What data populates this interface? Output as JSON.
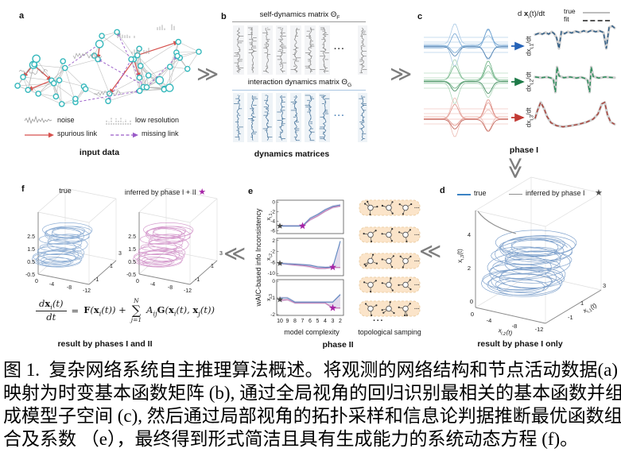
{
  "colors": {
    "node": "#35b8bc",
    "edge": "#b8b8b8",
    "spurious": "#d6514d",
    "missing": "#9a5bc8",
    "gray_matrix": "#8a8a8a",
    "blue_matrix": "#49759c",
    "underline1": "#9a9a9a",
    "underline2": "#aac7e2",
    "blue_line": "#5d88c0",
    "pink_line": "#c470ae",
    "band": "#b9a7cf",
    "attractor_blue": "#7fa3cf",
    "attractor_blue_dark": "#6b93c4",
    "attractor_pink": "#cf8cc5",
    "magenta_star": "#a623a6",
    "gray_star": "#4a4a4a",
    "true_blue": "#3b82c4",
    "inferred_gray": "#8f8f8f",
    "peach": "#fbe4c9",
    "peach_border": "#eccfa6",
    "chevron": "#7d7d7d",
    "fit_true": "#cfcfcf",
    "fit_colors": [
      "#2f5d86",
      "#2e8e5c",
      "#a8423a"
    ],
    "wave_blue": [
      "#a7c7e4",
      "#6ba0d0",
      "#3f74a8"
    ],
    "wave_green": [
      "#a8d4b4",
      "#63ad7c",
      "#2f7d4f"
    ],
    "wave_red": [
      "#ecb9b1",
      "#dd8b82",
      "#bd574d"
    ],
    "arrow_blue": "#2563b8",
    "arrow_green": "#1e7a48",
    "arrow_red": "#c23a34"
  },
  "figure": {
    "arrows": {
      "right": "≫",
      "left": "≪",
      "down": "≫"
    },
    "panels": {
      "a": {
        "label": "a",
        "caption": "input data",
        "legend": {
          "noise": "noise",
          "low_resolution": "low resolution",
          "spurious": "spurious link",
          "missing": "missing link"
        }
      },
      "b": {
        "label": "b",
        "caption": "dynamics matrices",
        "dots": "···",
        "matrix1": {
          "title": "self-dynamics matrix Θ",
          "sub": "F"
        },
        "matrix2": {
          "title": "interaction dynamics matrix Θ",
          "sub": "G"
        }
      },
      "c": {
        "label": "c",
        "caption": "phase I",
        "header": {
          "pre": "d ",
          "x": "x",
          "sub": "i",
          "post": "(t)/dt"
        },
        "legend": {
          "true": "true",
          "fit": "fit"
        },
        "rows": [
          {
            "pre": "dx",
            "sub": "i,1",
            "post": "/dt"
          },
          {
            "pre": "dx",
            "sub": "i,2",
            "post": "/dt"
          },
          {
            "pre": "dx",
            "sub": "i,3",
            "post": "/dt"
          }
        ]
      },
      "d": {
        "label": "d",
        "caption": "result by phase I only",
        "legend": {
          "true": "true",
          "inferred": "inferred by phase I",
          "star": "★"
        },
        "axes": {
          "z": {
            "main": "x",
            "sub": "i,3",
            "post": "(t)",
            "ticks": [
              "4",
              "2",
              "0"
            ]
          },
          "x": {
            "main": "x",
            "sub": "i,2",
            "post": "(t)",
            "ticks": [
              "0",
              "-4",
              "-8",
              "-12"
            ]
          },
          "y": {
            "main": "x",
            "sub": "i,1",
            "post": "(t)",
            "ticks": [
              "3",
              "1",
              "-1"
            ]
          }
        }
      },
      "e": {
        "label": "e",
        "caption": "phase II",
        "ylabel": "wAIC-based info Inconsistency",
        "xlabel": "model complexity",
        "sampling_label": "topological samping",
        "dots": "···"
      },
      "f": {
        "label": "f",
        "caption": "result by phases I and II",
        "left_title": "true",
        "right_title": "inferred by phase I + II",
        "star": "★",
        "axes": {
          "z_ticks": [
            "2.5",
            "1.5",
            "0.5",
            "-0.5"
          ],
          "x_ticks": [
            "0",
            "-4",
            "-8",
            "-12"
          ],
          "y_ticks": [
            "3",
            "1",
            "-1"
          ]
        },
        "equation": {
          "num_d": "d",
          "num_x": "x",
          "num_i": "i",
          "num_t": "(t)",
          "den": "dt",
          "eq": "=",
          "F": "F",
          "fo": "(",
          "x1": "x",
          "i1": "i",
          "t1": "(t)) +",
          "N": "N",
          "sum": "∑",
          "j1": "j=1",
          "A": "A",
          "ij": "ij",
          "G": "G",
          "go": "(",
          "x2": "x",
          "i2": "i",
          "t2": "(t),",
          "x3": "x",
          "j2": "j",
          "t3": "(t))"
        }
      }
    }
  },
  "caption": {
    "lines": [
      "图 1.  复杂网络系统自主推理算法概述。将观测的网络结构和节点活动数据(a)",
      "映射为时变基本函数矩阵 (b), 通过全局视角的回归识别最相关的基本函数并组",
      "成模型子空间 (c), 然后通过局部视角的拓扑采样和信息论判据推断最优函数组",
      "合及系数 （e），最终得到形式简洁且具有生成能力的系统动态方程 (f)。"
    ]
  },
  "chart_data": [
    {
      "type": "line",
      "panel": "e",
      "title": "wAIC-based info inconsistency vs model complexity",
      "x": [
        10,
        9,
        8,
        7,
        6,
        5,
        4,
        3,
        2
      ],
      "xlabel": "model complexity",
      "ylabel": "wAIC-based info Inconsistency",
      "legend_position": "none",
      "grid": false,
      "subplots": [
        {
          "row_label": {
            "main": "x",
            "sub": "i,1",
            "post": ""
          },
          "ylim": [
            -6.6,
            0.4
          ],
          "yticks": [
            0,
            -2,
            -4,
            -6
          ],
          "series": [
            {
              "name": "candidate blue",
              "values": [
                -5,
                -5,
                -5,
                -5,
                -3.4,
                -2.6,
                -1.6,
                -0.9,
                -0.6
              ]
            },
            {
              "name": "candidate pink",
              "values": [
                -5,
                -5,
                -5,
                -5,
                -3.7,
                -2.9,
                -1.9,
                -1.1,
                -0.8
              ]
            }
          ],
          "gray_star": [
            10,
            -5
          ],
          "magenta_star": [
            7,
            -5
          ]
        },
        {
          "row_label": {
            "main": "x",
            "sub": "i,2",
            "post": ""
          },
          "ylim": [
            -10.8,
            2.8
          ],
          "yticks": [
            2,
            -2,
            -6,
            -10
          ],
          "series": [
            {
              "name": "candidate blue",
              "values": [
                -6.3,
                -6.5,
                -6.6,
                -6.8,
                -7.0,
                -7.6,
                -7.8,
                -7.7,
                1.8
              ]
            },
            {
              "name": "candidate pink",
              "values": [
                -6.3,
                -6.6,
                -6.9,
                -7.1,
                -7.5,
                -8.1,
                -8.1,
                -7.8,
                -7.8
              ]
            }
          ],
          "gray_star": [
            10,
            -6.3
          ],
          "magenta_star": [
            3,
            -7.7
          ]
        },
        {
          "row_label": {
            "main": "x",
            "sub": "i,3",
            "post": ""
          },
          "ylim": [
            -2.05,
            0.1
          ],
          "yticks": [
            0,
            -1,
            -2
          ],
          "series": [
            {
              "name": "candidate blue",
              "values": [
                -1.0,
                -1.0,
                -1.25,
                -1.25,
                -1.25,
                -1.25,
                -1.25,
                -1.25,
                -0.8
              ]
            },
            {
              "name": "candidate pink",
              "values": [
                -1.15,
                -1.1,
                -1.3,
                -1.3,
                -1.3,
                -1.3,
                -1.3,
                -1.6,
                -1.6
              ]
            }
          ],
          "gray_star": [
            10,
            -1.1
          ],
          "magenta_star": [
            3,
            -1.6
          ]
        }
      ]
    },
    {
      "type": "line",
      "panel": "d",
      "title": "result by phase I only",
      "note": "3D attractor trajectory; true (blue) vs inferred by phase I (gray curve diverging from top)",
      "axes": {
        "x": {
          "label": "x_i,2(t)",
          "ticks": [
            0,
            -4,
            -8,
            -12
          ]
        },
        "y": {
          "label": "x_i,1(t)",
          "ticks": [
            -1,
            1,
            3
          ]
        },
        "z": {
          "label": "x_i,3(t)",
          "ticks": [
            0,
            2,
            4
          ]
        }
      }
    },
    {
      "type": "line",
      "panel": "f",
      "title": "result by phases I and II",
      "note": "two 3D attractors: true (blue) and inferred by phase I + II (magenta)",
      "axes": {
        "x_ticks": [
          0,
          -4,
          -8,
          -12
        ],
        "y_ticks": [
          -1,
          1,
          3
        ],
        "z_ticks": [
          -0.5,
          0.5,
          1.5,
          2.5
        ]
      }
    }
  ]
}
